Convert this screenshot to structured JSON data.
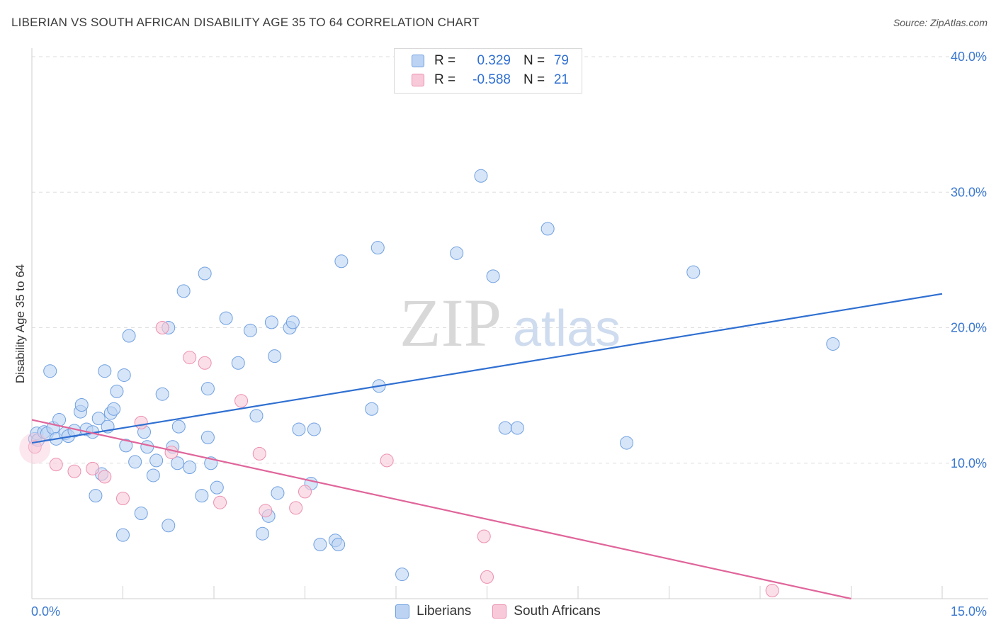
{
  "header": {
    "title": "LIBERIAN VS SOUTH AFRICAN DISABILITY AGE 35 TO 64 CORRELATION CHART",
    "source": "Source: ZipAtlas.com"
  },
  "watermark": {
    "zip": "ZIP",
    "atlas": "atlas"
  },
  "legend": {
    "rows": [
      {
        "r_label": "R =",
        "r_value": "0.329",
        "n_label": "N =",
        "n_value": "79",
        "color": "#6fa0e0",
        "fill": "#bcd3f3"
      },
      {
        "r_label": "R =",
        "r_value": "-0.588",
        "n_label": "N =",
        "n_value": "21",
        "color": "#ec8fb0",
        "fill": "#f8c9d9"
      }
    ]
  },
  "bottom_legend": [
    {
      "label": "Liberians",
      "color": "#6fa0e0",
      "fill": "#bcd3f3"
    },
    {
      "label": "South Africans",
      "color": "#ec8fb0",
      "fill": "#f8c9d9"
    }
  ],
  "chart_data": {
    "type": "scatter",
    "ylabel": "Disability Age 35 to 64",
    "xlim": [
      0,
      15
    ],
    "ylim": [
      0,
      40
    ],
    "x_tick_labels": [
      {
        "value": 0,
        "label": "0.0%"
      },
      {
        "value": 15,
        "label": "15.0%"
      }
    ],
    "y_tick_labels": [
      {
        "value": 10,
        "label": "10.0%"
      },
      {
        "value": 20,
        "label": "20.0%"
      },
      {
        "value": 30,
        "label": "30.0%"
      },
      {
        "value": 40,
        "label": "40.0%"
      }
    ],
    "x_minor_ticks": [
      1.5,
      3.0,
      4.5,
      6.0,
      7.5,
      9.0,
      10.5,
      12.0,
      13.5,
      15.0
    ],
    "series": [
      {
        "name": "Liberians",
        "color": "#6fa0e0",
        "fill": "#bcd3f3",
        "trend": {
          "x": [
            0,
            15
          ],
          "y": [
            11.5,
            22.5
          ]
        },
        "points": [
          [
            0.05,
            11.8
          ],
          [
            0.08,
            12.2
          ],
          [
            0.1,
            11.7
          ],
          [
            0.2,
            12.3
          ],
          [
            0.25,
            12.2
          ],
          [
            0.3,
            16.8
          ],
          [
            0.35,
            12.6
          ],
          [
            0.4,
            11.8
          ],
          [
            0.45,
            13.2
          ],
          [
            0.55,
            12.2
          ],
          [
            0.6,
            12.0
          ],
          [
            0.7,
            12.4
          ],
          [
            0.8,
            13.8
          ],
          [
            0.82,
            14.3
          ],
          [
            0.9,
            12.5
          ],
          [
            1.0,
            12.3
          ],
          [
            1.05,
            7.6
          ],
          [
            1.1,
            13.3
          ],
          [
            1.15,
            9.2
          ],
          [
            1.2,
            16.8
          ],
          [
            1.25,
            12.7
          ],
          [
            1.3,
            13.7
          ],
          [
            1.35,
            14.0
          ],
          [
            1.4,
            15.3
          ],
          [
            1.5,
            4.7
          ],
          [
            1.52,
            16.5
          ],
          [
            1.55,
            11.3
          ],
          [
            1.6,
            19.4
          ],
          [
            1.7,
            10.1
          ],
          [
            1.8,
            6.3
          ],
          [
            1.85,
            12.3
          ],
          [
            1.9,
            11.2
          ],
          [
            2.0,
            9.1
          ],
          [
            2.05,
            10.2
          ],
          [
            2.15,
            15.1
          ],
          [
            2.25,
            20.0
          ],
          [
            2.25,
            5.4
          ],
          [
            2.32,
            11.2
          ],
          [
            2.4,
            10.0
          ],
          [
            2.42,
            12.7
          ],
          [
            2.5,
            22.7
          ],
          [
            2.6,
            9.7
          ],
          [
            2.8,
            7.6
          ],
          [
            2.85,
            24.0
          ],
          [
            2.9,
            15.5
          ],
          [
            2.95,
            10.0
          ],
          [
            3.05,
            8.2
          ],
          [
            3.2,
            20.7
          ],
          [
            3.4,
            17.4
          ],
          [
            3.6,
            19.8
          ],
          [
            3.7,
            13.5
          ],
          [
            3.8,
            4.8
          ],
          [
            3.9,
            6.1
          ],
          [
            3.95,
            20.4
          ],
          [
            4.0,
            17.9
          ],
          [
            4.05,
            7.8
          ],
          [
            4.25,
            20.0
          ],
          [
            4.3,
            20.4
          ],
          [
            4.4,
            12.5
          ],
          [
            4.6,
            8.5
          ],
          [
            4.65,
            12.5
          ],
          [
            4.75,
            4.0
          ],
          [
            5.0,
            4.3
          ],
          [
            5.05,
            4.0
          ],
          [
            5.1,
            24.9
          ],
          [
            5.6,
            14.0
          ],
          [
            5.7,
            25.9
          ],
          [
            5.72,
            15.7
          ],
          [
            6.1,
            1.8
          ],
          [
            7.0,
            25.5
          ],
          [
            7.4,
            31.2
          ],
          [
            7.6,
            23.8
          ],
          [
            7.8,
            12.6
          ],
          [
            8.0,
            12.6
          ],
          [
            8.5,
            27.3
          ],
          [
            9.8,
            11.5
          ],
          [
            10.9,
            24.1
          ],
          [
            13.2,
            18.8
          ],
          [
            2.9,
            11.9
          ]
        ]
      },
      {
        "name": "South Africans",
        "color": "#ec8fb0",
        "fill": "#f8c9d9",
        "trend": {
          "x": [
            0,
            13.5
          ],
          "y": [
            13.2,
            0.0
          ]
        },
        "points": [
          [
            0.05,
            11.2
          ],
          [
            0.4,
            9.9
          ],
          [
            0.7,
            9.4
          ],
          [
            1.0,
            9.6
          ],
          [
            1.2,
            9.0
          ],
          [
            1.5,
            7.4
          ],
          [
            1.8,
            13.0
          ],
          [
            2.15,
            20.0
          ],
          [
            2.3,
            10.8
          ],
          [
            2.6,
            17.8
          ],
          [
            2.85,
            17.4
          ],
          [
            3.1,
            7.1
          ],
          [
            3.45,
            14.6
          ],
          [
            3.75,
            10.7
          ],
          [
            3.85,
            6.5
          ],
          [
            4.35,
            6.7
          ],
          [
            4.5,
            7.9
          ],
          [
            5.85,
            10.2
          ],
          [
            7.45,
            4.6
          ],
          [
            7.5,
            1.6
          ],
          [
            12.2,
            0.6
          ]
        ]
      }
    ]
  }
}
